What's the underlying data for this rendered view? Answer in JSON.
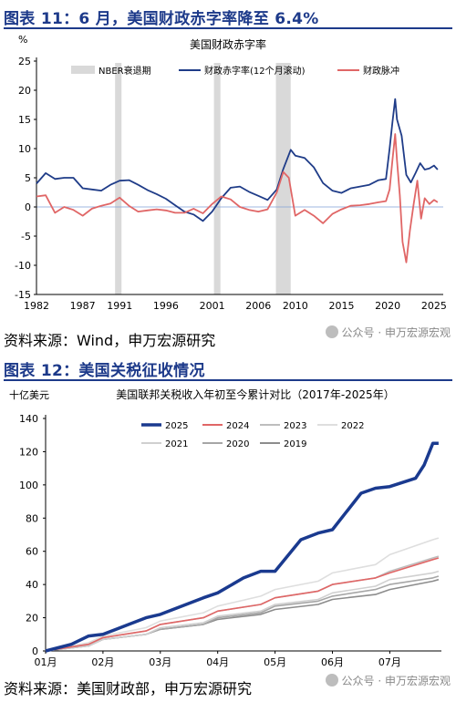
{
  "figures": [
    {
      "title": "图表 11：6 月，美国财政赤字率降至 6.4%",
      "source": "资料来源：Wind，申万宏源研究",
      "watermark": "公众号 · 申万宏源宏观"
    },
    {
      "title": "图表 12：美国关税征收情况",
      "source": "资料来源：美国财政部，申万宏源研究",
      "watermark": "公众号 · 申万宏源宏观"
    }
  ],
  "chart_data": [
    {
      "type": "line",
      "title": "美国财政赤字率",
      "ylabel": "%",
      "xlabel": "",
      "ylim": [
        -15,
        25
      ],
      "yticks": [
        -15,
        -10,
        -5,
        0,
        5,
        10,
        15,
        20,
        25
      ],
      "xlim": [
        1982,
        2026
      ],
      "xticks": [
        1982,
        1987,
        1991,
        1996,
        2001,
        2006,
        2010,
        2015,
        2020,
        2025
      ],
      "grid": false,
      "legend": "top",
      "legend_labels": [
        "NBER衰退期",
        "财政赤字率(12个月滚动)",
        "财政脉冲"
      ],
      "recessions": [
        [
          1990.5,
          1991.2
        ],
        [
          2001.2,
          2001.9
        ],
        [
          2007.9,
          2009.5
        ]
      ],
      "series": [
        {
          "name": "财政赤字率(12个月滚动)",
          "color": "#1f3c88",
          "x": [
            1982,
            1983,
            1984,
            1985,
            1986,
            1987,
            1988,
            1989,
            1990,
            1991,
            1992,
            1993,
            1994,
            1995,
            1996,
            1997,
            1998,
            1999,
            2000,
            2001,
            2002,
            2003,
            2004,
            2005,
            2006,
            2007,
            2008,
            2008.7,
            2009.5,
            2010,
            2011,
            2012,
            2013,
            2014,
            2015,
            2016,
            2017,
            2018,
            2019,
            2019.8,
            2020.2,
            2020.5,
            2020.8,
            2021,
            2021.5,
            2022,
            2022.5,
            2023,
            2023.5,
            2024,
            2024.5,
            2025,
            2025.4
          ],
          "values": [
            4.0,
            5.8,
            4.8,
            5.0,
            5.0,
            3.2,
            3.0,
            2.8,
            3.8,
            4.5,
            4.6,
            3.8,
            2.9,
            2.2,
            1.4,
            0.3,
            -0.8,
            -1.3,
            -2.4,
            -0.8,
            1.5,
            3.3,
            3.5,
            2.6,
            1.9,
            1.2,
            3.0,
            6.5,
            9.8,
            8.8,
            8.4,
            6.8,
            4.1,
            2.8,
            2.4,
            3.2,
            3.5,
            3.8,
            4.6,
            4.8,
            10.0,
            14.5,
            18.5,
            15.0,
            12.2,
            5.5,
            4.2,
            5.8,
            7.5,
            6.4,
            6.6,
            7.1,
            6.4
          ]
        },
        {
          "name": "财政脉冲",
          "color": "#e06666",
          "x": [
            1982,
            1983,
            1984,
            1985,
            1986,
            1987,
            1988,
            1989,
            1990,
            1991,
            1992,
            1993,
            1994,
            1995,
            1996,
            1997,
            1998,
            1999,
            2000,
            2001,
            2002,
            2003,
            2004,
            2005,
            2006,
            2007,
            2008,
            2008.7,
            2009.3,
            2010,
            2011,
            2012,
            2013,
            2014,
            2015,
            2016,
            2017,
            2018,
            2019,
            2019.8,
            2020.2,
            2020.5,
            2020.8,
            2021,
            2021.3,
            2021.6,
            2022,
            2022.4,
            2022.8,
            2023.2,
            2023.6,
            2024,
            2024.5,
            2025,
            2025.4
          ],
          "values": [
            1.8,
            2.0,
            -1.0,
            0.0,
            -0.5,
            -1.5,
            -0.3,
            0.2,
            0.6,
            1.6,
            0.2,
            -0.8,
            -0.6,
            -0.4,
            -0.6,
            -1.0,
            -1.0,
            -0.3,
            -1.1,
            0.5,
            1.8,
            1.3,
            0.0,
            -0.5,
            -0.8,
            -0.4,
            2.5,
            6.0,
            5.0,
            -1.5,
            -0.5,
            -1.5,
            -2.8,
            -1.2,
            -0.4,
            0.2,
            0.3,
            0.5,
            0.8,
            1.0,
            3.0,
            8.0,
            12.5,
            8.0,
            2.0,
            -6.0,
            -9.5,
            -4.0,
            0.5,
            4.5,
            -2.0,
            1.5,
            0.5,
            1.2,
            0.8
          ]
        }
      ]
    },
    {
      "type": "line",
      "title": "美国联邦关税收入年初至今累计对比（2017年-2025年）",
      "ylabel": "十亿美元",
      "xlabel": "",
      "ylim": [
        0,
        140
      ],
      "yticks": [
        0,
        20,
        40,
        60,
        80,
        100,
        120,
        140
      ],
      "x_tick_labels": [
        "01月",
        "02月",
        "03月",
        "04月",
        "05月",
        "06月",
        "07月"
      ],
      "x_tick_positions": [
        0,
        1,
        2,
        3,
        4,
        5,
        6
      ],
      "grid": false,
      "legend": "top",
      "series": [
        {
          "name": "2025",
          "color": "#1a3a8f",
          "width": 3.5,
          "x": [
            0,
            0.45,
            0.75,
            1.0,
            1.45,
            1.75,
            2.0,
            2.45,
            2.75,
            3.0,
            3.45,
            3.75,
            4.0,
            4.45,
            4.75,
            5.0,
            5.5,
            5.75,
            6.0,
            6.45,
            6.6,
            6.75,
            6.85
          ],
          "values": [
            0,
            4,
            9,
            10,
            16,
            20,
            22,
            28,
            32,
            35,
            44,
            48,
            48,
            67,
            71,
            73,
            95,
            98,
            99,
            104,
            112,
            125,
            125
          ]
        },
        {
          "name": "2024",
          "color": "#e06666",
          "width": 1.6,
          "x": [
            0,
            0.75,
            1.0,
            1.75,
            2.0,
            2.75,
            3.0,
            3.75,
            4.0,
            4.75,
            5.0,
            5.75,
            6.0,
            6.75,
            6.85
          ],
          "values": [
            0,
            4,
            8,
            12,
            16,
            20,
            24,
            28,
            32,
            36,
            40,
            44,
            47,
            55,
            56
          ]
        },
        {
          "name": "2023",
          "color": "#bdbdbd",
          "width": 1.6,
          "x": [
            0,
            0.75,
            1.0,
            1.75,
            2.0,
            2.75,
            3.0,
            3.75,
            4.0,
            4.75,
            5.0,
            5.75,
            6.0,
            6.75,
            6.85
          ],
          "values": [
            0,
            4,
            8,
            12,
            16,
            20,
            24,
            28,
            32,
            36,
            40,
            44,
            48,
            56,
            57
          ]
        },
        {
          "name": "2022",
          "color": "#dedede",
          "width": 1.6,
          "x": [
            0,
            0.75,
            1.0,
            1.75,
            2.0,
            2.75,
            3.0,
            3.75,
            4.0,
            4.75,
            5.0,
            5.75,
            6.0,
            6.75,
            6.85
          ],
          "values": [
            0,
            5,
            9,
            14,
            18,
            23,
            27,
            33,
            37,
            42,
            47,
            52,
            58,
            67,
            68
          ]
        },
        {
          "name": "2021",
          "color": "#d0d0d0",
          "width": 1.6,
          "x": [
            0,
            0.75,
            1.0,
            1.75,
            2.0,
            2.75,
            3.0,
            3.75,
            4.0,
            4.75,
            5.0,
            5.75,
            6.0,
            6.75,
            6.85
          ],
          "values": [
            0,
            3,
            7,
            10,
            14,
            17,
            21,
            24,
            28,
            31,
            35,
            39,
            43,
            47,
            48
          ]
        },
        {
          "name": "2020",
          "color": "#a6a6a6",
          "width": 1.6,
          "x": [
            0,
            0.75,
            1.0,
            1.75,
            2.0,
            2.75,
            3.0,
            3.75,
            4.0,
            4.75,
            5.0,
            5.75,
            6.0,
            6.75,
            6.85
          ],
          "values": [
            0,
            3,
            7,
            10,
            13,
            16,
            20,
            23,
            27,
            30,
            33,
            37,
            40,
            44,
            45
          ]
        },
        {
          "name": "2019",
          "color": "#8c8c8c",
          "width": 1.6,
          "x": [
            0,
            0.75,
            1.0,
            1.75,
            2.0,
            2.75,
            3.0,
            3.75,
            4.0,
            4.75,
            5.0,
            5.75,
            6.0,
            6.75,
            6.85
          ],
          "values": [
            0,
            3,
            7,
            10,
            13,
            16,
            19,
            22,
            25,
            28,
            31,
            34,
            37,
            42,
            43
          ]
        }
      ]
    }
  ]
}
